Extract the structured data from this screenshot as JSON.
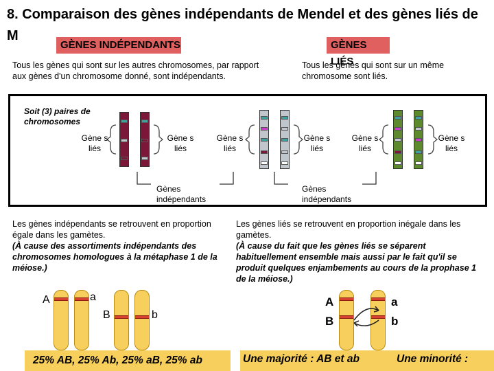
{
  "title": "8. Comparaison des gènes indépendants de Mendel et des gènes liés de M",
  "tags": {
    "independent": "GÈNES INDÉPENDANTS",
    "linked": "GÈNES LIÉS"
  },
  "definitions": {
    "independent": "Tous les gènes qui sont sur les autres chromosomes, par rapport aux gènes d'un chromosome donné, sont indépendants.",
    "linked": "Tous les gènes qui sont sur un même chromosome sont liés."
  },
  "diagram": {
    "pairs_label": "Soit (3) paires de chromosomes",
    "linked_label": "Gène s liés",
    "independent_label": "Gènes indépendants",
    "colors": {
      "pair1": "#7b1738",
      "pair2": "#c0c6cc",
      "pair3": "#5d8a2c",
      "band_teal": "#3fa0a0",
      "band_magenta": "#c83cc8"
    }
  },
  "explanations": {
    "independent_main": "Les gènes indépendants se retrouvent en proportion égale dans les gamètes.",
    "independent_reason": "(À cause des assortiments indépendants des chromosomes homologues à la métaphase 1 de la méiose.)",
    "linked_main": "Les gènes liés se retrouvent en proportion inégale dans les gamètes.",
    "linked_reason": "(À cause du fait que les gènes liés se séparent habituellement ensemble mais aussi par le fait qu'il se produit quelques enjambements au cours de la prophase 1 de la méiose.)"
  },
  "alleles": {
    "A": "A",
    "a": "a",
    "B": "B",
    "b": "b"
  },
  "results": {
    "independent": "25% AB, 25% Ab, 25% aB, 25% ab",
    "linked_major": "Une majorité : AB et ab",
    "linked_minor": "Une minorité :"
  }
}
